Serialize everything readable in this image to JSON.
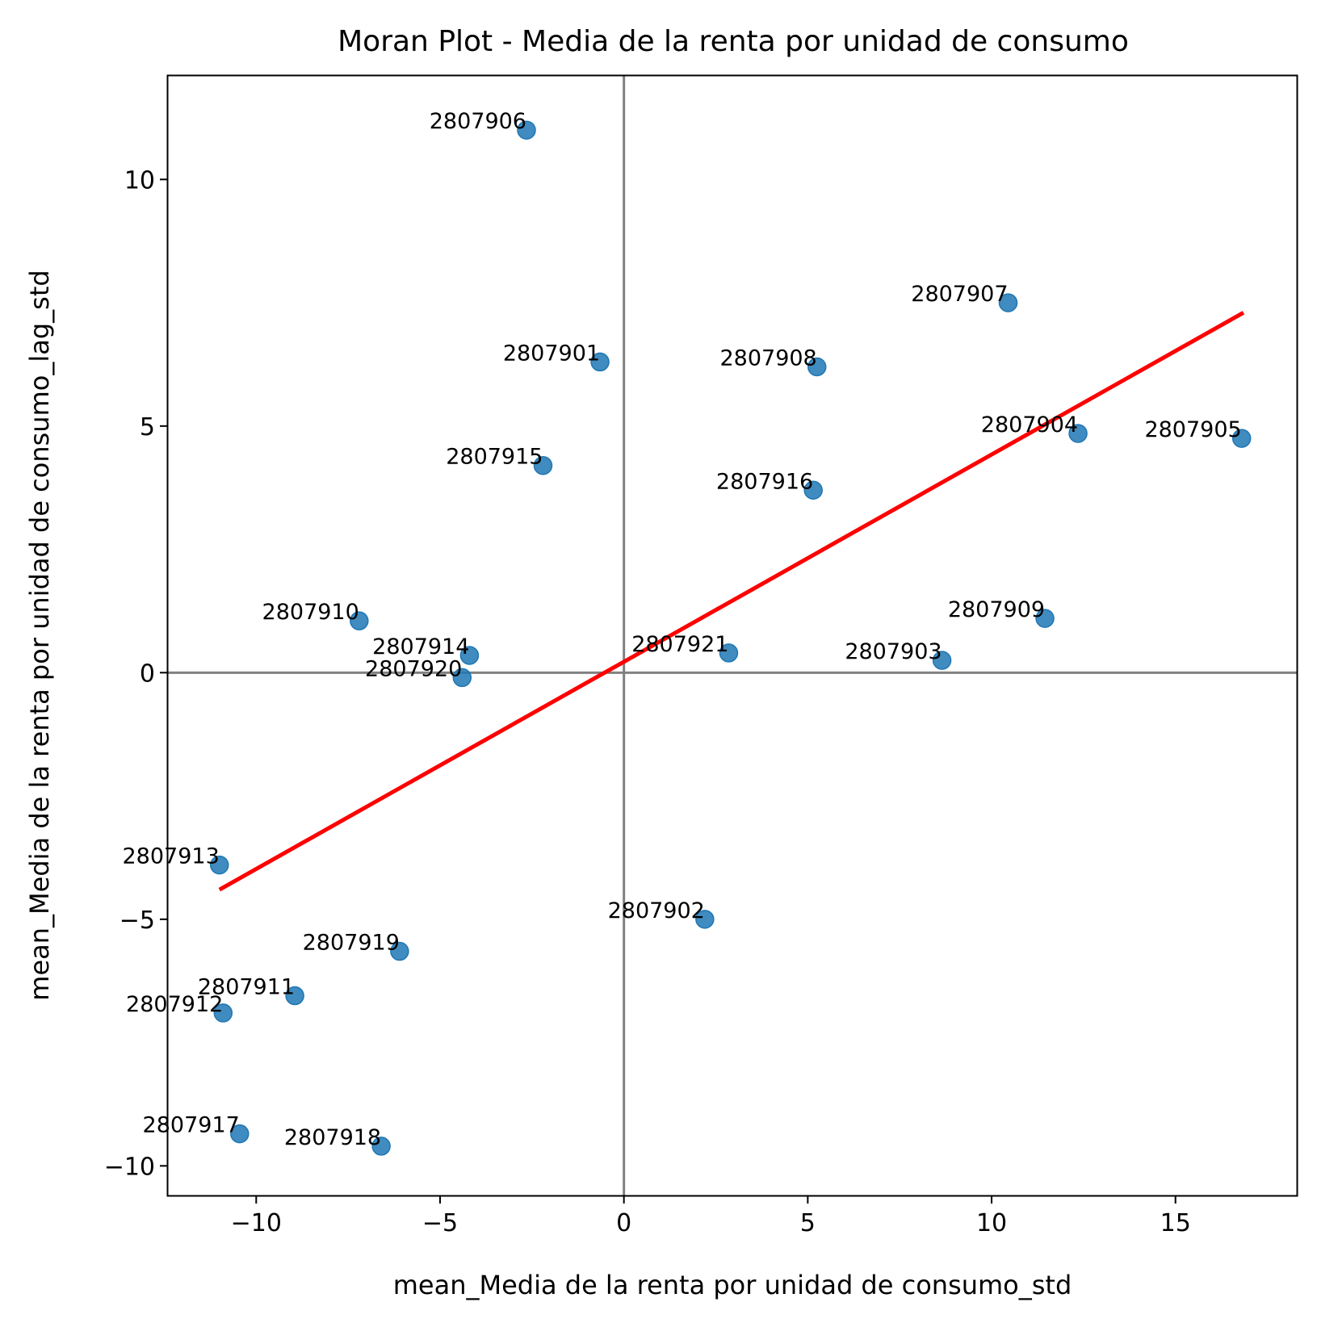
{
  "chart_data": {
    "type": "scatter",
    "title": "Moran Plot - Media de la renta por unidad de consumo",
    "xlabel": "mean_Media de la renta por unidad de consumo_std",
    "ylabel": "mean_Media de la renta por unidad de consumo_lag_std",
    "xlim": [
      -12.4,
      18.3
    ],
    "ylim": [
      -10.6,
      12.1
    ],
    "xticks": [
      -10,
      -5,
      0,
      5,
      10,
      15
    ],
    "yticks": [
      -10,
      -5,
      0,
      5,
      10
    ],
    "xtick_labels": [
      "−10",
      "−5",
      "0",
      "5",
      "10",
      "15"
    ],
    "ytick_labels": [
      "−10",
      "−5",
      "0",
      "5",
      "10"
    ],
    "grid": false,
    "reference_lines": {
      "x": 0,
      "y": 0,
      "color": "#808080"
    },
    "point_color": "#1f77b4",
    "fit_line": {
      "color": "#ff0000",
      "x": [
        -11.0,
        16.85
      ],
      "y": [
        -4.4,
        7.3
      ]
    },
    "points": [
      {
        "label": "2807906",
        "x": -2.65,
        "y": 11.0
      },
      {
        "label": "2807901",
        "x": -0.65,
        "y": 6.3
      },
      {
        "label": "2807915",
        "x": -2.2,
        "y": 4.2
      },
      {
        "label": "2807910",
        "x": -7.2,
        "y": 1.05
      },
      {
        "label": "2807914",
        "x": -4.2,
        "y": 0.35
      },
      {
        "label": "2807920",
        "x": -4.4,
        "y": -0.1
      },
      {
        "label": "2807921",
        "x": 2.85,
        "y": 0.4
      },
      {
        "label": "2807907",
        "x": 10.45,
        "y": 7.5
      },
      {
        "label": "2807908",
        "x": 5.25,
        "y": 6.2
      },
      {
        "label": "2807904",
        "x": 12.35,
        "y": 4.85
      },
      {
        "label": "2807905",
        "x": 16.8,
        "y": 4.75
      },
      {
        "label": "2807916",
        "x": 5.15,
        "y": 3.7
      },
      {
        "label": "2807909",
        "x": 11.45,
        "y": 1.1
      },
      {
        "label": "2807903",
        "x": 8.65,
        "y": 0.25
      },
      {
        "label": "2807913",
        "x": -11.0,
        "y": -3.9
      },
      {
        "label": "2807902",
        "x": 2.2,
        "y": -5.0
      },
      {
        "label": "2807919",
        "x": -6.1,
        "y": -5.65
      },
      {
        "label": "2807911",
        "x": -8.95,
        "y": -6.55
      },
      {
        "label": "2807912",
        "x": -10.9,
        "y": -6.9
      },
      {
        "label": "2807917",
        "x": -10.45,
        "y": -9.35
      },
      {
        "label": "2807918",
        "x": -6.6,
        "y": -9.6
      }
    ]
  }
}
